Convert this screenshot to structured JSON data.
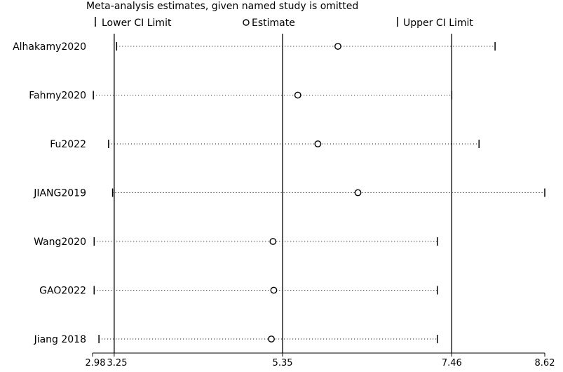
{
  "chart_data": {
    "type": "sensitivity-plot",
    "title": "Meta-analysis estimates, given named study is omitted",
    "legend": {
      "lower": "Lower CI Limit",
      "estimate": "Estimate",
      "upper": "Upper CI Limit"
    },
    "x_ticks": [
      {
        "value": 2.98,
        "label": "2.98"
      },
      {
        "value": 3.25,
        "label": "3.25"
      },
      {
        "value": 5.35,
        "label": "5.35"
      },
      {
        "value": 7.46,
        "label": "7.46"
      },
      {
        "value": 8.62,
        "label": "8.62"
      }
    ],
    "xlim": [
      2.98,
      8.62
    ],
    "reference_lines": [
      3.25,
      5.35,
      7.46
    ],
    "studies": [
      {
        "name": "Alhakamy2020",
        "lower": 3.28,
        "estimate": 6.04,
        "upper": 8.0
      },
      {
        "name": "Fahmy2020",
        "lower": 2.99,
        "estimate": 5.54,
        "upper": 7.46
      },
      {
        "name": "Fu2022",
        "lower": 3.18,
        "estimate": 5.79,
        "upper": 7.8
      },
      {
        "name": "JIANG2019",
        "lower": 3.23,
        "estimate": 6.29,
        "upper": 8.62
      },
      {
        "name": "Wang2020",
        "lower": 3.0,
        "estimate": 5.23,
        "upper": 7.28
      },
      {
        "name": "GAO2022",
        "lower": 3.0,
        "estimate": 5.24,
        "upper": 7.28
      },
      {
        "name": "Jiang 2018",
        "lower": 3.06,
        "estimate": 5.21,
        "upper": 7.28
      }
    ]
  }
}
